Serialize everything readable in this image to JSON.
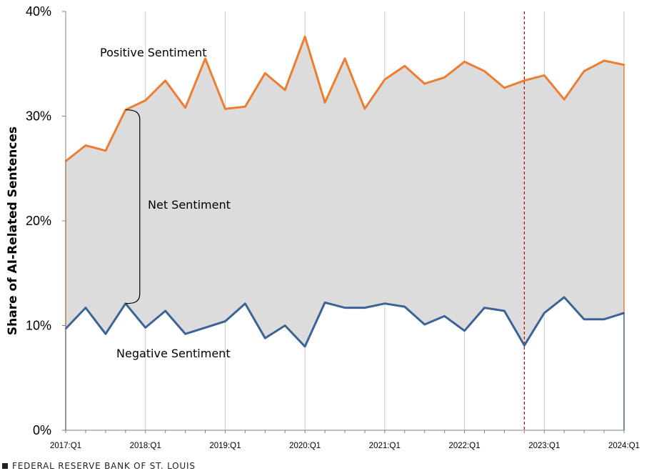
{
  "chart_data": {
    "type": "area",
    "ylabel": "Share of AI-Related Sentences",
    "ylim": [
      0,
      40
    ],
    "y_ticks": [
      {
        "value": 0,
        "label": "0%"
      },
      {
        "value": 10,
        "label": "10%"
      },
      {
        "value": 20,
        "label": "20%"
      },
      {
        "value": 30,
        "label": "30%"
      },
      {
        "value": 40,
        "label": "40%"
      }
    ],
    "x_tick_labels": [
      "2017:Q1",
      "2018:Q1",
      "2019:Q1",
      "2020:Q1",
      "2021:Q1",
      "2022:Q1",
      "2023:Q1",
      "2024:Q1"
    ],
    "x": [
      "2017:Q1",
      "2017:Q2",
      "2017:Q3",
      "2017:Q4",
      "2018:Q1",
      "2018:Q2",
      "2018:Q3",
      "2018:Q4",
      "2019:Q1",
      "2019:Q2",
      "2019:Q3",
      "2019:Q4",
      "2020:Q1",
      "2020:Q2",
      "2020:Q3",
      "2020:Q4",
      "2021:Q1",
      "2021:Q2",
      "2021:Q3",
      "2021:Q4",
      "2022:Q1",
      "2022:Q2",
      "2022:Q3",
      "2022:Q4",
      "2023:Q1",
      "2023:Q2",
      "2023:Q3",
      "2023:Q4",
      "2024:Q1"
    ],
    "series": [
      {
        "name": "Positive Sentiment",
        "color": "#ED7D31",
        "values": [
          25.7,
          27.2,
          26.7,
          30.6,
          31.5,
          33.4,
          30.8,
          35.5,
          30.7,
          30.9,
          34.1,
          32.5,
          37.6,
          31.3,
          35.5,
          30.7,
          33.5,
          34.8,
          33.1,
          33.7,
          35.2,
          34.3,
          32.7,
          33.4,
          33.9,
          31.6,
          34.3,
          35.3,
          34.9
        ]
      },
      {
        "name": "Negative Sentiment",
        "color": "#3B6496",
        "values": [
          9.7,
          11.7,
          9.2,
          12.1,
          9.8,
          11.4,
          9.2,
          9.8,
          10.4,
          12.1,
          8.8,
          10.0,
          8.0,
          12.2,
          11.7,
          11.7,
          12.1,
          11.8,
          10.1,
          10.9,
          9.5,
          11.7,
          11.4,
          8.1,
          11.2,
          12.7,
          10.6,
          10.6,
          11.2
        ]
      }
    ],
    "band_fill": "#DCDCDC",
    "annotations": {
      "positive": "Positive Sentiment",
      "negative": "Negative Sentiment",
      "net": "Net Sentiment",
      "net_bracket_x": "2017:Q4",
      "net_bracket_range": [
        12.1,
        30.6
      ]
    },
    "reference_line": {
      "x": "2022:Q4",
      "style": "dashed",
      "color": "#C00000"
    },
    "grid": "vertical"
  },
  "footer": {
    "text": "FEDERAL RESERVE BANK OF ST. LOUIS"
  }
}
